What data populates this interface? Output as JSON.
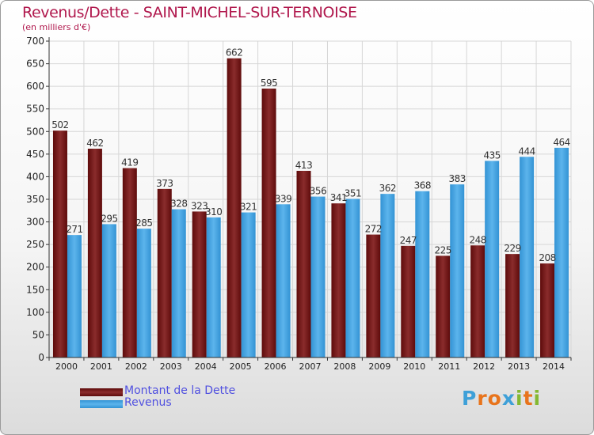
{
  "title": "Revenus/Dette - SAINT-MICHEL-SUR-TERNOISE",
  "subtitle": "(en milliers d'€)",
  "colors": {
    "debt": "#7a1414",
    "revenue": "#45a3e0",
    "title": "#b0174c",
    "legend_text": "#5050e0"
  },
  "logo": {
    "letters": [
      "P",
      "r",
      "o",
      "x",
      "i",
      "t",
      "i"
    ],
    "colors": [
      "#3ea0d8",
      "#e8741c",
      "#e8741c",
      "#3ea0d8",
      "#84b832",
      "#e8741c",
      "#84b832"
    ]
  },
  "legend": [
    {
      "label": "Montant de la Dette"
    },
    {
      "label": "Revenus"
    }
  ],
  "chart_data": {
    "type": "bar",
    "title": "Revenus/Dette - SAINT-MICHEL-SUR-TERNOISE",
    "ylabel": "(en milliers d'€)",
    "categories": [
      "2000",
      "2001",
      "2002",
      "2003",
      "2004",
      "2005",
      "2006",
      "2007",
      "2008",
      "2009",
      "2010",
      "2011",
      "2012",
      "2013",
      "2014"
    ],
    "series": [
      {
        "name": "Montant de la Dette",
        "values": [
          502,
          462,
          419,
          373,
          323,
          662,
          595,
          413,
          341,
          272,
          247,
          225,
          248,
          229,
          208
        ]
      },
      {
        "name": "Revenus",
        "values": [
          271,
          295,
          285,
          328,
          310,
          321,
          339,
          356,
          351,
          362,
          368,
          383,
          435,
          444,
          464
        ]
      }
    ],
    "ylim": [
      0,
      700
    ],
    "yticks": [
      0,
      50,
      100,
      150,
      200,
      250,
      300,
      350,
      400,
      450,
      500,
      550,
      600,
      650,
      700
    ],
    "grid": true,
    "legend_position": "bottom-left"
  }
}
